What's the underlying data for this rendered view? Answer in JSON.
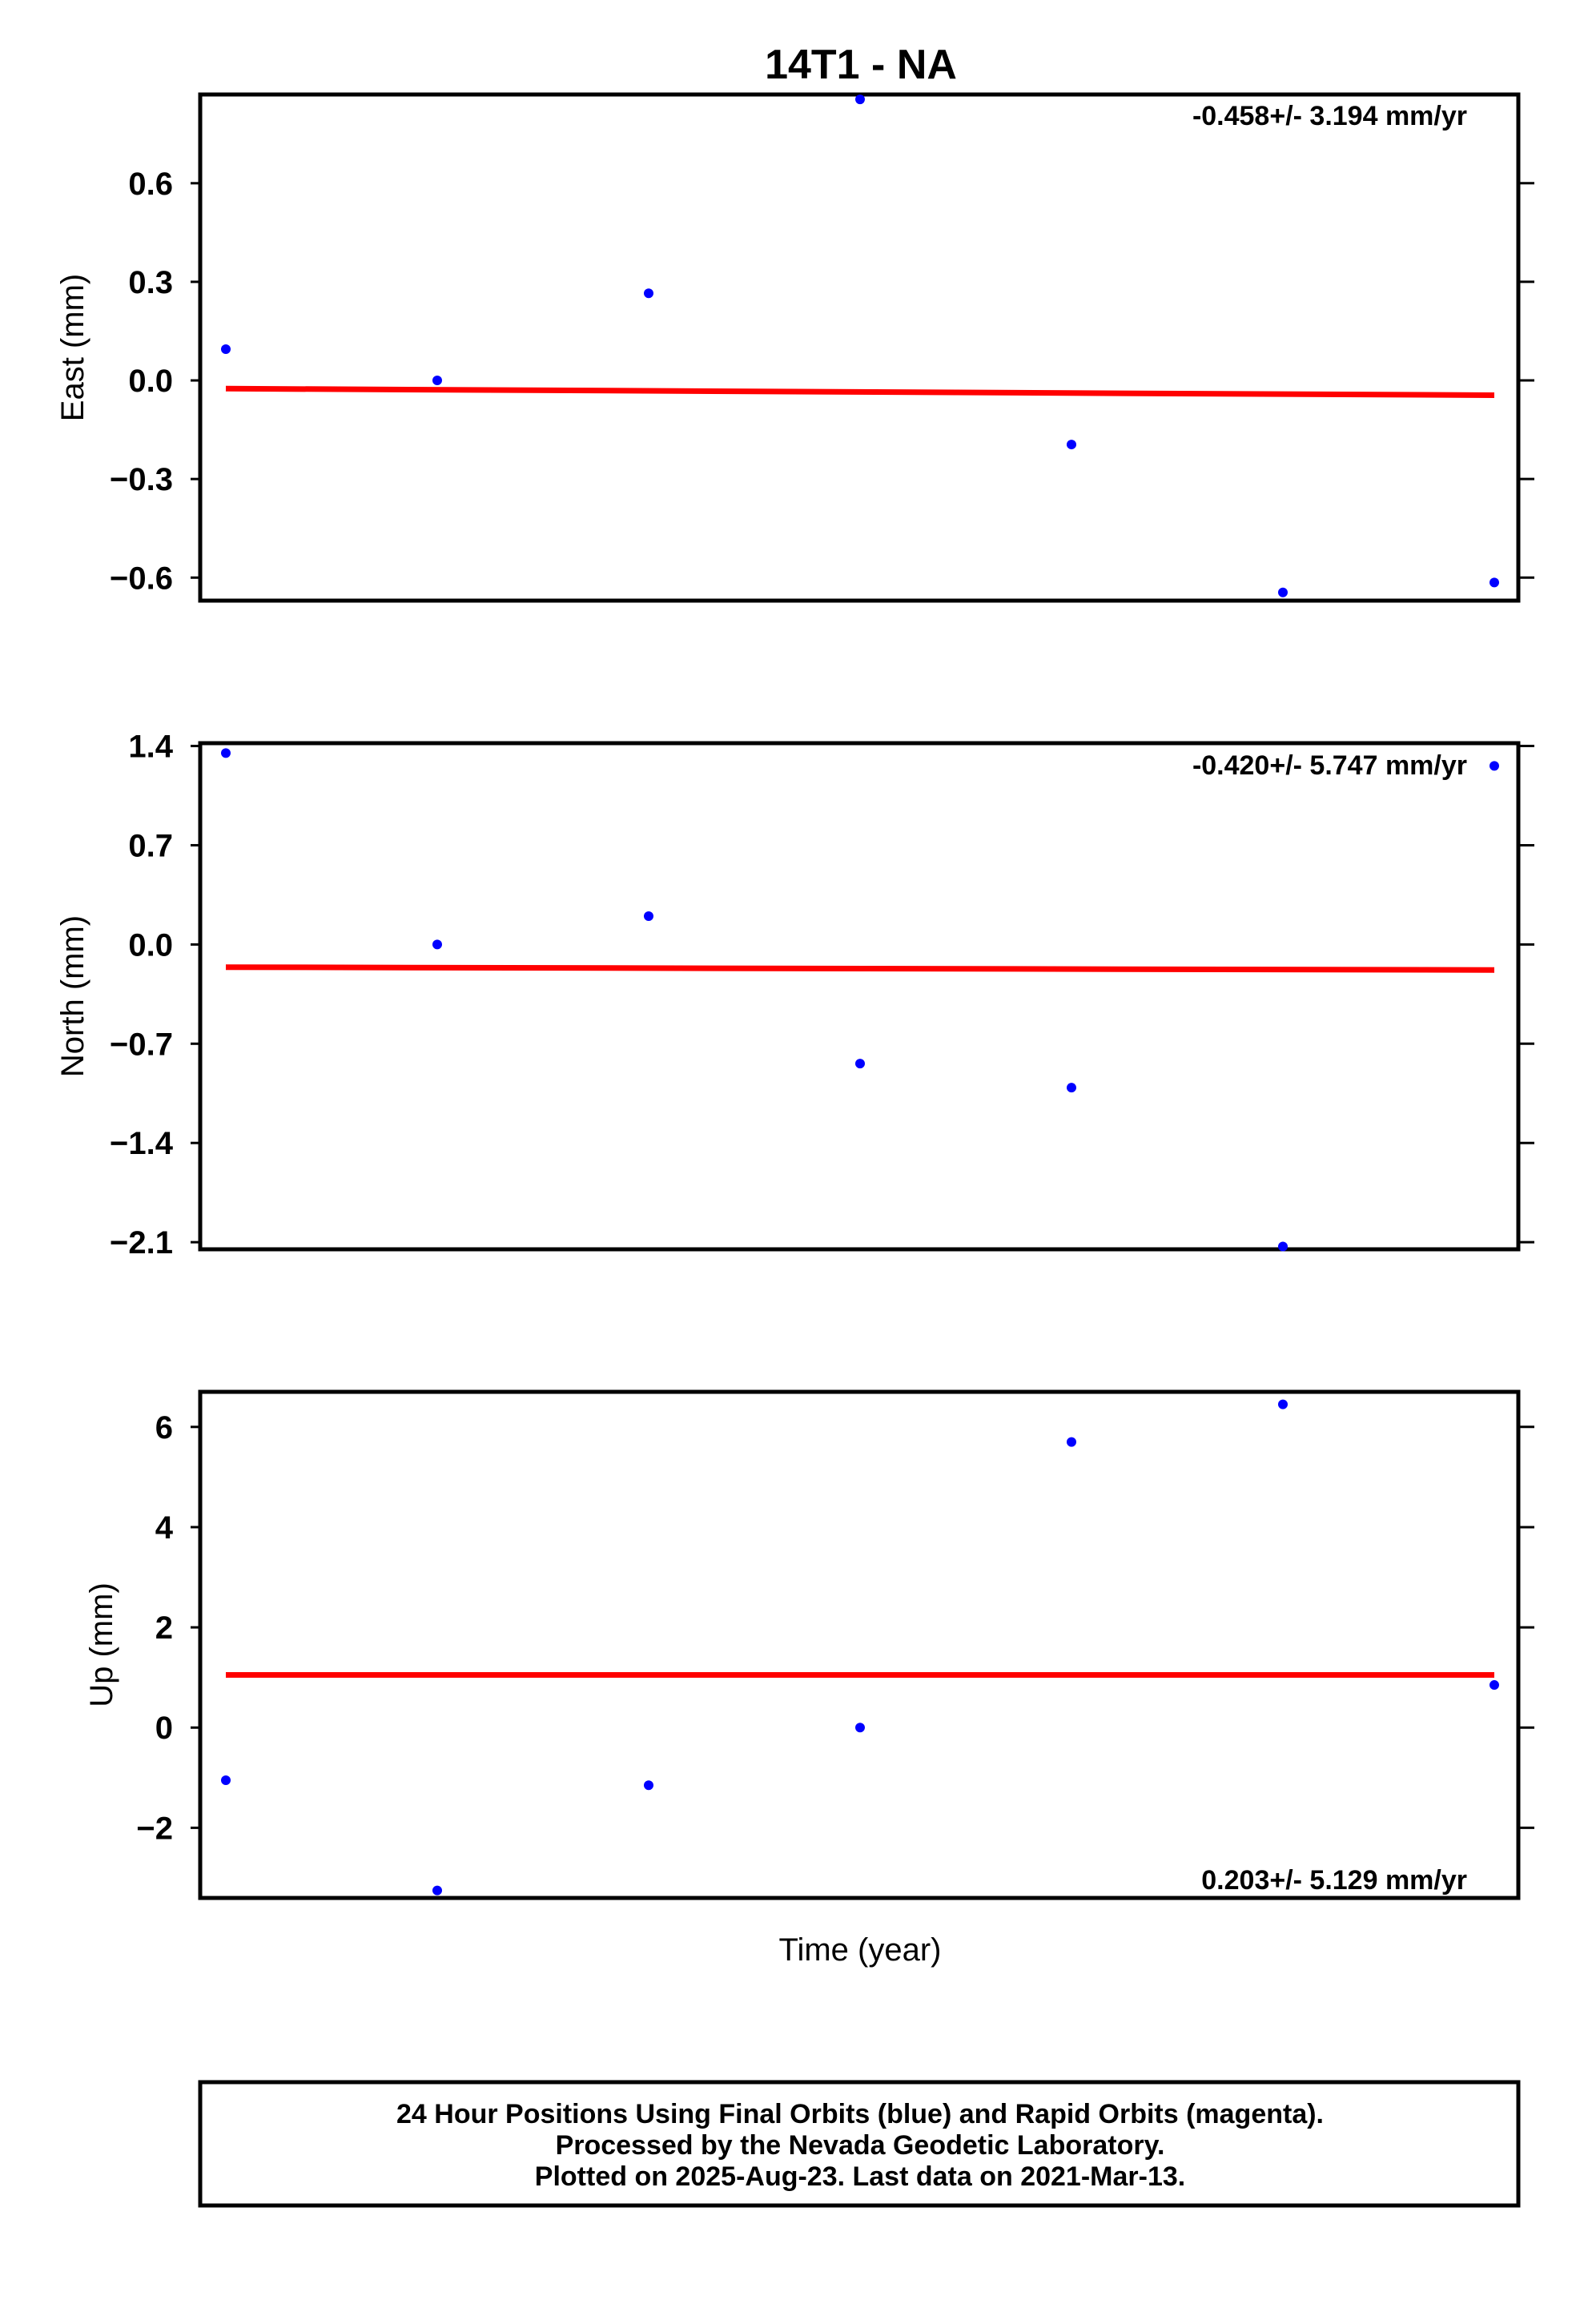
{
  "chart_data": {
    "type": "scatter",
    "title": "14T1 - NA",
    "xlabel": "Time (year)",
    "series_colors": {
      "points": "#0000ff",
      "trend": "#ff0000"
    },
    "panels": [
      {
        "name": "east",
        "ylabel": "East (mm)",
        "ylim": [
          -0.67,
          0.87
        ],
        "yticks": [
          0.6,
          0.3,
          0.0,
          -0.3,
          -0.6
        ],
        "ytick_labels": [
          "0.6",
          "0.3",
          "0.0",
          "−0.3",
          "−0.6"
        ],
        "rate": "-0.458+/- 3.194 mm/yr",
        "rate_position": "top-right",
        "points": [
          0.095,
          0.0,
          0.265,
          0.855,
          -0.195,
          -0.645,
          -0.615
        ],
        "trend": [
          -0.025,
          -0.045
        ]
      },
      {
        "name": "north",
        "ylabel": "North (mm)",
        "ylim": [
          -2.15,
          1.42
        ],
        "yticks": [
          1.4,
          0.7,
          0.0,
          -0.7,
          -1.4,
          -2.1
        ],
        "ytick_labels": [
          "1.4",
          "0.7",
          "0.0",
          "−0.7",
          "−1.4",
          "−2.1"
        ],
        "rate": "-0.420+/- 5.747 mm/yr",
        "rate_position": "top-right",
        "points": [
          1.35,
          0.0,
          0.2,
          -0.84,
          -1.01,
          -2.13,
          1.26
        ],
        "trend": [
          -0.16,
          -0.18
        ]
      },
      {
        "name": "up",
        "ylabel": "Up (mm)",
        "ylim": [
          -3.4,
          6.7
        ],
        "yticks": [
          6,
          4,
          2,
          0,
          -2
        ],
        "ytick_labels": [
          "6",
          "4",
          "2",
          "0",
          "−2"
        ],
        "rate": "0.203+/- 5.129 mm/yr",
        "rate_position": "bottom-right",
        "points": [
          -1.05,
          -3.25,
          -1.15,
          0.0,
          5.7,
          6.45,
          0.85
        ],
        "trend": [
          1.05,
          1.05
        ]
      }
    ],
    "footer": [
      "24 Hour Positions Using Final Orbits (blue) and Rapid Orbits (magenta).",
      "Processed by the Nevada Geodetic Laboratory.",
      "Plotted on 2025-Aug-23. Last data on 2021-Mar-13."
    ]
  }
}
